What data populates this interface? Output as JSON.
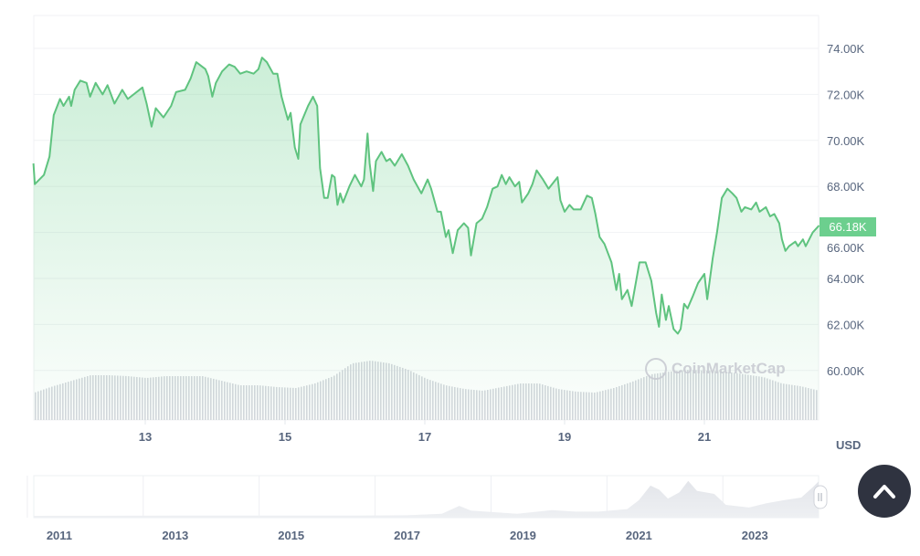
{
  "chart_data": {
    "type": "area",
    "title": "",
    "xlabel": "",
    "ylabel": "",
    "currency_label": "USD",
    "current_price_label": "66.18K",
    "watermark": "CoinMarketCap",
    "colors": {
      "line": "#5fc37f",
      "fill": "#6ccf8e",
      "volume": "#d4d7dd",
      "label_bg": "#6ccf8e",
      "button": "#2f3340"
    },
    "grid": true,
    "ylim": [
      58,
      75
    ],
    "xlim": [
      11.4,
      22.64
    ],
    "y_ticks": [
      {
        "value": 74,
        "label": "74.00K"
      },
      {
        "value": 72,
        "label": "72.00K"
      },
      {
        "value": 70,
        "label": "70.00K"
      },
      {
        "value": 68,
        "label": "68.00K"
      },
      {
        "value": 66,
        "label": "66.00K"
      },
      {
        "value": 64,
        "label": "64.00K"
      },
      {
        "value": 62,
        "label": "62.00K"
      },
      {
        "value": 60,
        "label": "60.00K"
      }
    ],
    "x_ticks": [
      {
        "value": 13,
        "label": "13"
      },
      {
        "value": 15,
        "label": "15"
      },
      {
        "value": 17,
        "label": "17"
      },
      {
        "value": 19,
        "label": "19"
      },
      {
        "value": 21,
        "label": "21"
      }
    ],
    "series": [
      {
        "unit": "thousand USD",
        "points": [
          [
            11.4,
            69.0
          ],
          [
            11.42,
            68.1
          ],
          [
            11.55,
            68.5
          ],
          [
            11.63,
            69.3
          ],
          [
            11.69,
            71.1
          ],
          [
            11.78,
            71.8
          ],
          [
            11.83,
            71.5
          ],
          [
            11.91,
            71.9
          ],
          [
            11.94,
            71.5
          ],
          [
            11.99,
            72.2
          ],
          [
            12.07,
            72.6
          ],
          [
            12.16,
            72.5
          ],
          [
            12.21,
            71.9
          ],
          [
            12.29,
            72.5
          ],
          [
            12.39,
            72.0
          ],
          [
            12.46,
            72.4
          ],
          [
            12.56,
            71.6
          ],
          [
            12.67,
            72.2
          ],
          [
            12.75,
            71.8
          ],
          [
            12.96,
            72.3
          ],
          [
            13.02,
            71.6
          ],
          [
            13.09,
            70.6
          ],
          [
            13.15,
            71.4
          ],
          [
            13.26,
            71.0
          ],
          [
            13.37,
            71.5
          ],
          [
            13.44,
            72.1
          ],
          [
            13.57,
            72.2
          ],
          [
            13.65,
            72.7
          ],
          [
            13.73,
            73.4
          ],
          [
            13.86,
            73.1
          ],
          [
            13.9,
            72.8
          ],
          [
            13.96,
            71.9
          ],
          [
            14.01,
            72.5
          ],
          [
            14.1,
            73.0
          ],
          [
            14.2,
            73.3
          ],
          [
            14.28,
            73.2
          ],
          [
            14.36,
            72.9
          ],
          [
            14.45,
            73.0
          ],
          [
            14.55,
            72.9
          ],
          [
            14.62,
            73.1
          ],
          [
            14.67,
            73.6
          ],
          [
            14.74,
            73.4
          ],
          [
            14.83,
            72.9
          ],
          [
            14.89,
            72.9
          ],
          [
            14.95,
            71.9
          ],
          [
            15.04,
            70.9
          ],
          [
            15.08,
            71.2
          ],
          [
            15.14,
            69.7
          ],
          [
            15.19,
            69.2
          ],
          [
            15.22,
            70.7
          ],
          [
            15.33,
            71.5
          ],
          [
            15.4,
            71.9
          ],
          [
            15.46,
            71.5
          ],
          [
            15.5,
            68.8
          ],
          [
            15.56,
            67.5
          ],
          [
            15.61,
            67.5
          ],
          [
            15.67,
            68.5
          ],
          [
            15.71,
            68.4
          ],
          [
            15.75,
            67.2
          ],
          [
            15.79,
            67.7
          ],
          [
            15.83,
            67.3
          ],
          [
            15.92,
            68.0
          ],
          [
            16.0,
            68.5
          ],
          [
            16.09,
            68.0
          ],
          [
            16.13,
            68.3
          ],
          [
            16.18,
            70.3
          ],
          [
            16.21,
            69.0
          ],
          [
            16.26,
            67.8
          ],
          [
            16.3,
            69.1
          ],
          [
            16.38,
            69.5
          ],
          [
            16.45,
            69.1
          ],
          [
            16.5,
            69.2
          ],
          [
            16.57,
            68.9
          ],
          [
            16.67,
            69.4
          ],
          [
            16.76,
            68.9
          ],
          [
            16.84,
            68.3
          ],
          [
            16.95,
            67.7
          ],
          [
            17.04,
            68.3
          ],
          [
            17.09,
            67.9
          ],
          [
            17.18,
            66.9
          ],
          [
            17.23,
            66.9
          ],
          [
            17.3,
            65.8
          ],
          [
            17.34,
            66.1
          ],
          [
            17.4,
            65.1
          ],
          [
            17.47,
            66.1
          ],
          [
            17.56,
            66.4
          ],
          [
            17.62,
            66.2
          ],
          [
            17.66,
            65.0
          ],
          [
            17.74,
            66.4
          ],
          [
            17.82,
            66.6
          ],
          [
            17.89,
            67.1
          ],
          [
            17.97,
            67.9
          ],
          [
            18.04,
            68.0
          ],
          [
            18.1,
            68.5
          ],
          [
            18.16,
            68.1
          ],
          [
            18.21,
            68.4
          ],
          [
            18.29,
            68.0
          ],
          [
            18.35,
            68.2
          ],
          [
            18.39,
            67.3
          ],
          [
            18.48,
            67.7
          ],
          [
            18.54,
            68.1
          ],
          [
            18.6,
            68.7
          ],
          [
            18.69,
            68.3
          ],
          [
            18.77,
            67.9
          ],
          [
            18.9,
            68.4
          ],
          [
            18.94,
            67.4
          ],
          [
            19.0,
            66.9
          ],
          [
            19.07,
            67.2
          ],
          [
            19.13,
            67.0
          ],
          [
            19.23,
            67.0
          ],
          [
            19.32,
            67.6
          ],
          [
            19.39,
            67.5
          ],
          [
            19.44,
            66.8
          ],
          [
            19.5,
            65.8
          ],
          [
            19.57,
            65.5
          ],
          [
            19.67,
            64.7
          ],
          [
            19.74,
            63.5
          ],
          [
            19.78,
            64.2
          ],
          [
            19.82,
            63.1
          ],
          [
            19.9,
            63.5
          ],
          [
            19.96,
            62.8
          ],
          [
            20.07,
            64.7
          ],
          [
            20.16,
            64.7
          ],
          [
            20.24,
            63.9
          ],
          [
            20.31,
            62.5
          ],
          [
            20.35,
            61.9
          ],
          [
            20.39,
            63.3
          ],
          [
            20.45,
            62.2
          ],
          [
            20.49,
            62.8
          ],
          [
            20.56,
            61.8
          ],
          [
            20.62,
            61.6
          ],
          [
            20.66,
            61.8
          ],
          [
            20.71,
            62.9
          ],
          [
            20.76,
            62.7
          ],
          [
            20.83,
            63.2
          ],
          [
            20.91,
            63.8
          ],
          [
            21.0,
            64.2
          ],
          [
            21.04,
            63.1
          ],
          [
            21.12,
            64.9
          ],
          [
            21.18,
            66.0
          ],
          [
            21.25,
            67.5
          ],
          [
            21.33,
            67.9
          ],
          [
            21.4,
            67.7
          ],
          [
            21.46,
            67.5
          ],
          [
            21.53,
            66.9
          ],
          [
            21.58,
            67.1
          ],
          [
            21.67,
            67.0
          ],
          [
            21.74,
            67.3
          ],
          [
            21.79,
            66.9
          ],
          [
            21.88,
            67.1
          ],
          [
            21.94,
            66.7
          ],
          [
            22.0,
            66.8
          ],
          [
            22.07,
            66.4
          ],
          [
            22.11,
            65.7
          ],
          [
            22.16,
            65.2
          ],
          [
            22.21,
            65.4
          ],
          [
            22.3,
            65.6
          ],
          [
            22.34,
            65.4
          ],
          [
            22.41,
            65.7
          ],
          [
            22.45,
            65.4
          ],
          [
            22.55,
            66.0
          ],
          [
            22.64,
            66.3
          ]
        ]
      }
    ],
    "volume_relative": [
      30,
      37,
      43,
      49,
      49,
      48,
      46,
      48,
      48,
      48,
      43,
      38,
      38,
      36,
      35,
      40,
      48,
      62,
      65,
      62,
      55,
      45,
      38,
      34,
      32,
      36,
      40,
      40,
      34,
      31,
      30,
      35,
      42,
      50,
      53,
      55,
      54,
      53,
      50,
      47,
      40,
      37,
      32
    ],
    "navigator": {
      "x_ticks": [
        {
          "value": 2011,
          "label": "2011"
        },
        {
          "value": 2013,
          "label": "2013"
        },
        {
          "value": 2015,
          "label": "2015"
        },
        {
          "value": 2017,
          "label": "2017"
        },
        {
          "value": 2019,
          "label": "2019"
        },
        {
          "value": 2021,
          "label": "2021"
        },
        {
          "value": 2023,
          "label": "2023"
        }
      ],
      "xlim": [
        2010.56,
        2024.1
      ],
      "points": [
        [
          2010.56,
          0
        ],
        [
          2013,
          0.5
        ],
        [
          2016,
          0.5
        ],
        [
          2017,
          1
        ],
        [
          2017.6,
          4
        ],
        [
          2017.9,
          19
        ],
        [
          2018.1,
          10
        ],
        [
          2018.5,
          7
        ],
        [
          2018.9,
          4
        ],
        [
          2019.5,
          11
        ],
        [
          2019.9,
          8
        ],
        [
          2020.3,
          8
        ],
        [
          2020.8,
          13
        ],
        [
          2021.0,
          30
        ],
        [
          2021.2,
          58
        ],
        [
          2021.35,
          50
        ],
        [
          2021.5,
          33
        ],
        [
          2021.7,
          45
        ],
        [
          2021.85,
          67
        ],
        [
          2022.0,
          48
        ],
        [
          2022.3,
          42
        ],
        [
          2022.5,
          21
        ],
        [
          2022.9,
          16
        ],
        [
          2023.2,
          24
        ],
        [
          2023.5,
          30
        ],
        [
          2023.8,
          35
        ],
        [
          2024.0,
          55
        ],
        [
          2024.1,
          66
        ]
      ]
    }
  },
  "scroll_top_button": {
    "icon": "chevron-up-icon"
  }
}
